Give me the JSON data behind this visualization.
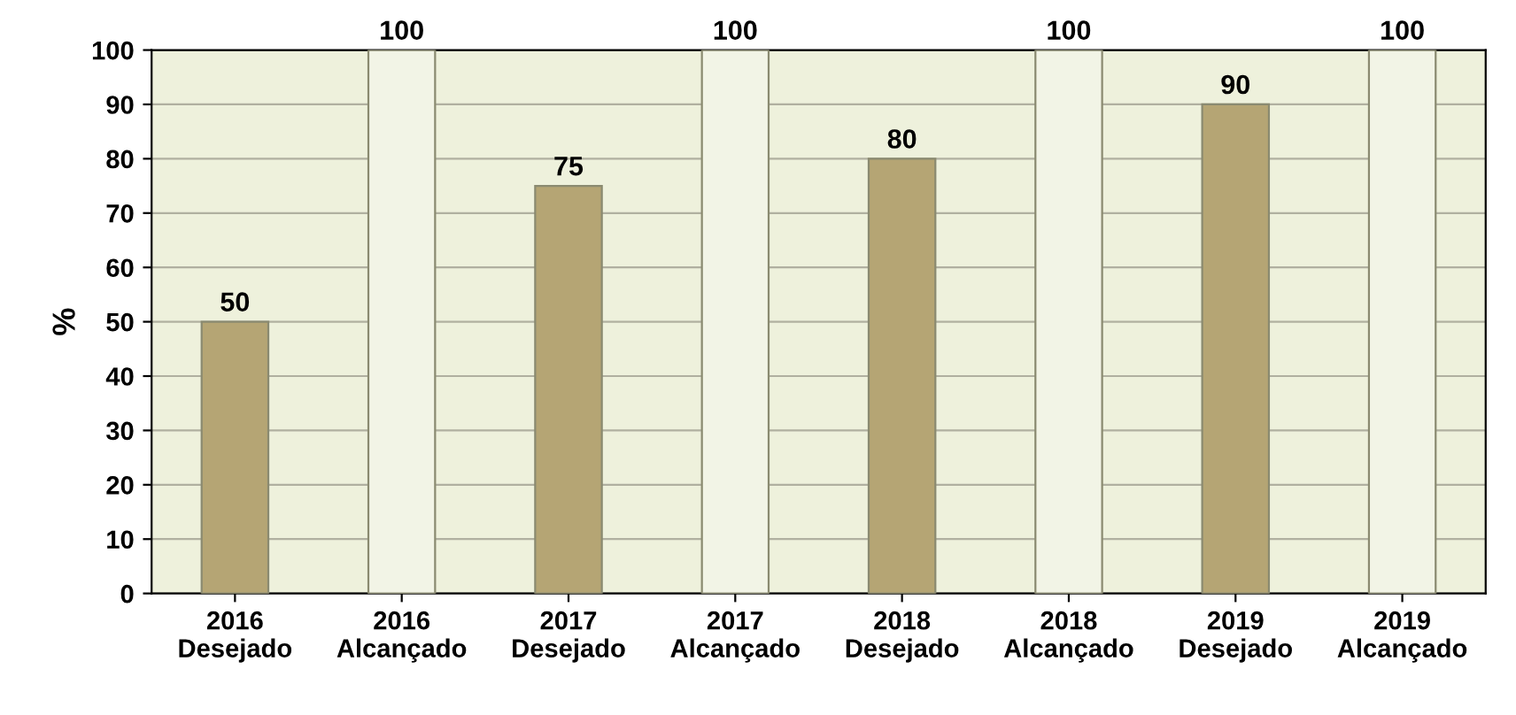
{
  "chart_data": {
    "type": "bar",
    "ylabel": "%",
    "categories": [
      "2016\nDesejado",
      "2016\nAlcançado",
      "2017\nDesejado",
      "2017\nAlcançado",
      "2018\nDesejado",
      "2018\nAlcançado",
      "2019\nDesejado",
      "2019\nAlcançado"
    ],
    "values": [
      50,
      100,
      75,
      100,
      80,
      100,
      90,
      100
    ],
    "colors": [
      "#b5a574",
      "#f2f4e6",
      "#b5a574",
      "#f2f4e6",
      "#b5a574",
      "#f2f4e6",
      "#b5a574",
      "#f2f4e6"
    ],
    "ylim": [
      0,
      100
    ],
    "yticks": [
      0,
      10,
      20,
      30,
      40,
      50,
      60,
      70,
      80,
      90,
      100
    ],
    "grid": "y",
    "data_labels": true
  }
}
